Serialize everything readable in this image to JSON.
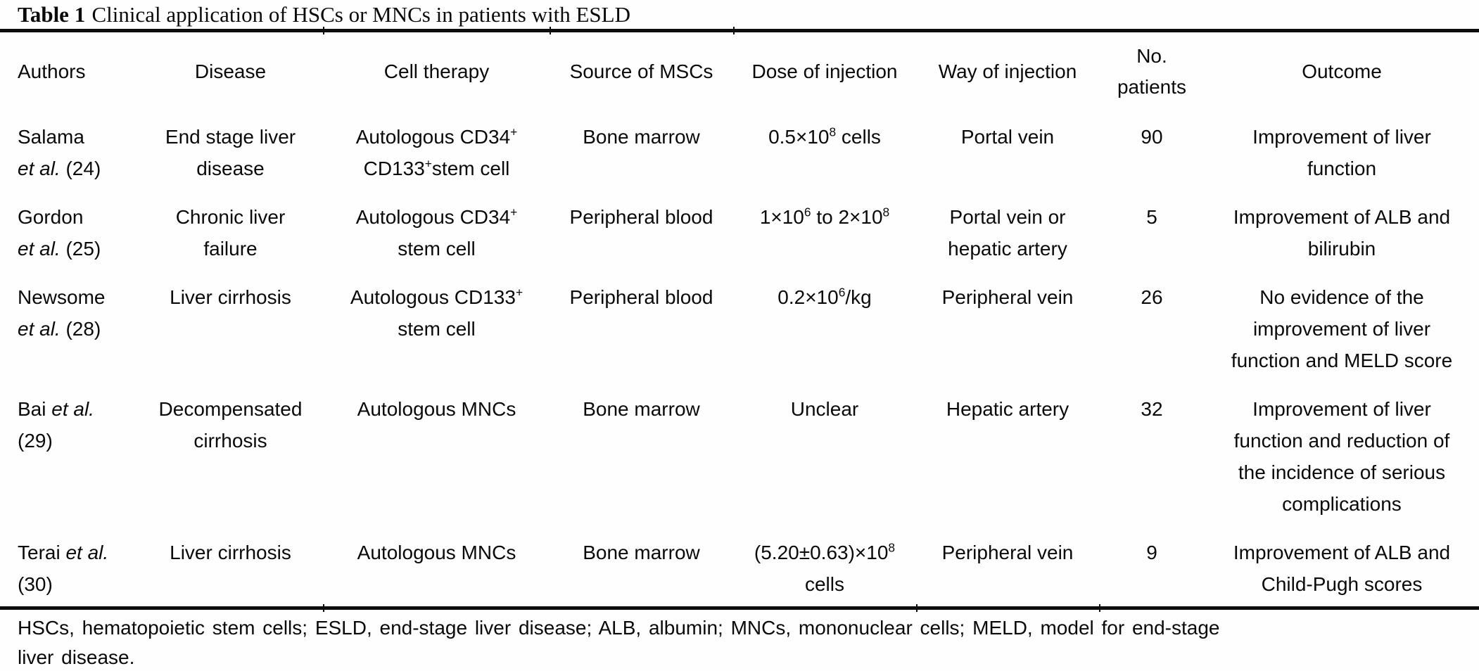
{
  "title": {
    "bold": "Table 1",
    "rest": "Clinical application of HSCs or MNCs in patients with ESLD"
  },
  "table": {
    "columns": [
      "Authors",
      "Disease",
      "Cell therapy",
      "Source of MSCs",
      "Dose of injection",
      "Way of injection",
      "No.\npatients",
      "Outcome"
    ],
    "rows": [
      {
        "authors": "Salama\n*et al.* (24)",
        "disease": "End stage liver\ndisease",
        "cell_therapy": "Autologous CD34^{+}\nCD133^{+}stem cell",
        "source": "Bone marrow",
        "dose": "0.5×10^{8} cells",
        "way": "Portal vein",
        "patients": "90",
        "outcome": "Improvement of liver\nfunction"
      },
      {
        "authors": "Gordon\n*et al.* (25)",
        "disease": "Chronic liver\nfailure",
        "cell_therapy": "Autologous CD34^{+}\nstem cell",
        "source": "Peripheral blood",
        "dose": "1×10^{6} to 2×10^{8}",
        "way": "Portal vein or\nhepatic artery",
        "patients": "5",
        "outcome": "Improvement of ALB and\nbilirubin"
      },
      {
        "authors": "Newsome\n*et al.* (28)",
        "disease": "Liver cirrhosis",
        "cell_therapy": "Autologous CD133^{+}\nstem cell",
        "source": "Peripheral blood",
        "dose": "0.2×10^{6}/kg",
        "way": "Peripheral vein",
        "patients": "26",
        "outcome": "No evidence of the\nimprovement of liver\nfunction and MELD score"
      },
      {
        "authors": "Bai *et al.*\n(29)",
        "disease": "Decompensated\ncirrhosis",
        "cell_therapy": "Autologous MNCs",
        "source": "Bone marrow",
        "dose": "Unclear",
        "way": "Hepatic artery",
        "patients": "32",
        "outcome": "Improvement of liver\nfunction and reduction of\nthe incidence of serious\ncomplications"
      },
      {
        "authors": "Terai *et al.*\n(30)",
        "disease": "Liver cirrhosis",
        "cell_therapy": "Autologous MNCs",
        "source": "Bone marrow",
        "dose": "(5.20±0.63)×10^{8}\ncells",
        "way": "Peripheral vein",
        "patients": "9",
        "outcome": "Improvement of ALB and\nChild-Pugh scores"
      }
    ]
  },
  "footnote": "HSCs, hematopoietic stem cells; ESLD, end-stage liver disease; ALB, albumin; MNCs, mononuclear cells; MELD, model for end-stage\nliver disease."
}
